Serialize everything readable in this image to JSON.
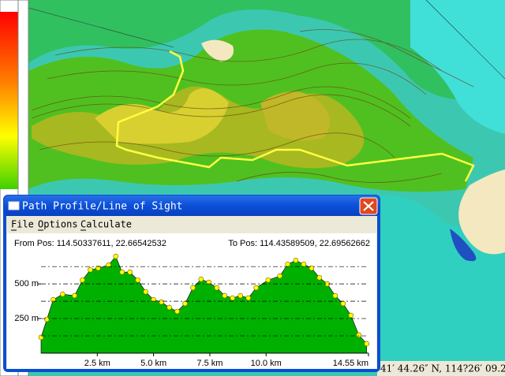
{
  "window": {
    "title": "Path Profile/Line of Sight",
    "menu": [
      "File",
      "Options",
      "Calculate"
    ]
  },
  "status_text": "41′ 44.26″ N, 114?26′ 09.2",
  "chart_data": {
    "type": "area",
    "from_pos": "From Pos: 114.50337611, 22.66542532",
    "to_pos": "To Pos: 114.43589509, 22.69562662",
    "x": [
      0,
      0.26,
      0.54,
      0.96,
      1.49,
      1.84,
      2.19,
      2.54,
      3.0,
      3.32,
      3.6,
      3.95,
      4.3,
      4.65,
      5.0,
      5.35,
      5.7,
      6.05,
      6.4,
      6.75,
      7.11,
      7.46,
      7.81,
      8.16,
      8.51,
      8.86,
      9.21,
      9.56,
      10.09,
      10.61,
      10.96,
      11.32,
      11.67,
      12.02,
      12.37,
      12.72,
      13.07,
      13.42,
      13.77,
      14.12,
      14.47
    ],
    "values": [
      114,
      244,
      386,
      426,
      415,
      528,
      602,
      614,
      636,
      699,
      585,
      585,
      528,
      443,
      386,
      369,
      330,
      301,
      358,
      472,
      534,
      511,
      472,
      415,
      398,
      415,
      398,
      472,
      528,
      557,
      642,
      670,
      642,
      614,
      545,
      500,
      415,
      358,
      273,
      131,
      68
    ],
    "color": "#00b000",
    "marker_color": "#ffff00",
    "xlim": [
      0,
      14.55
    ],
    "xticks": [
      {
        "value": 2.5,
        "label": "2.5 km"
      },
      {
        "value": 5.0,
        "label": "5.0 km"
      },
      {
        "value": 7.5,
        "label": "7.5 km"
      },
      {
        "value": 10.0,
        "label": "10.0 km"
      },
      {
        "value": 14.55,
        "label": "14.55 km"
      }
    ],
    "ylim": [
      0,
      740
    ],
    "yticks": [
      {
        "value": 250,
        "label": "250 m"
      },
      {
        "value": 500,
        "label": "500 m"
      }
    ],
    "minor_yticks": [
      125,
      375,
      625
    ],
    "grid": true
  }
}
